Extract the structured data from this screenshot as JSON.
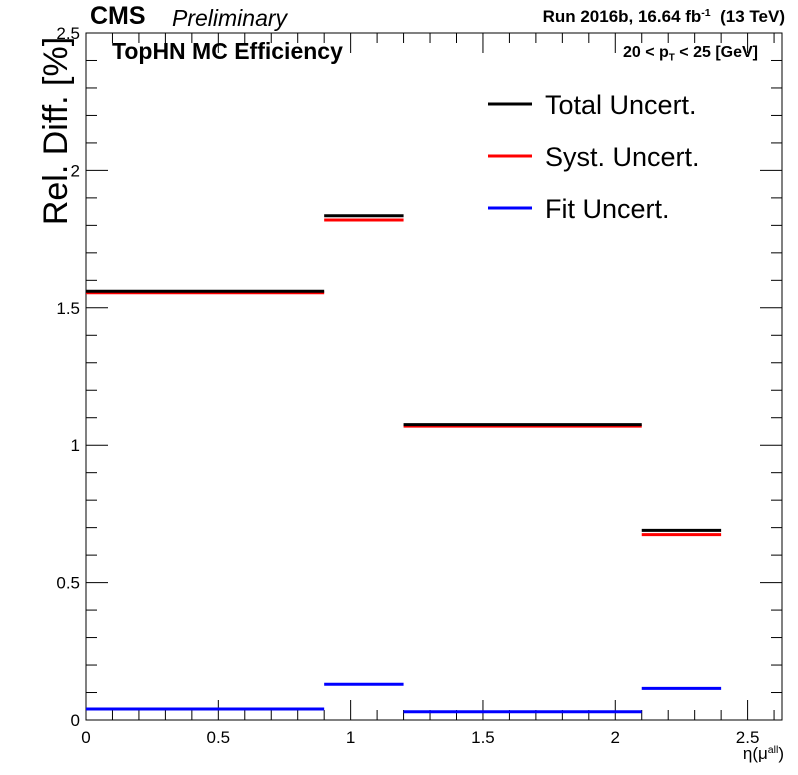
{
  "header": {
    "experiment": "CMS",
    "status": "Preliminary",
    "run_prefix": "Run 2016b,  16.64 fb",
    "run_exponent": "-1",
    "run_energy": "(13 TeV)"
  },
  "chart_data": {
    "type": "line",
    "title": "TopHN MC Efficiency",
    "pt_label": {
      "prefix": "20 < p",
      "sub": "T",
      "suffix": " < 25 [GeV]"
    },
    "ylabel": "Rel. Diff. [%]",
    "xlabel": {
      "prefix": "η(μ",
      "sup": "all",
      "suffix": ")"
    },
    "xlim": [
      0,
      2.63
    ],
    "ylim": [
      0,
      2.5
    ],
    "x_ticks": [
      0,
      0.5,
      1,
      1.5,
      2,
      2.5
    ],
    "x_tick_labels": [
      "0",
      "0.5",
      "1",
      "1.5",
      "2",
      "2.5"
    ],
    "y_ticks": [
      0,
      0.5,
      1,
      1.5,
      2,
      2.5
    ],
    "y_tick_labels": [
      "0",
      "0.5",
      "1",
      "1.5",
      "2",
      "2.5"
    ],
    "grid": false,
    "legend_position": "top-right",
    "bin_edges": [
      0,
      0.9,
      1.2,
      2.1,
      2.4
    ],
    "series": [
      {
        "name": "Total Uncert.",
        "color": "#000000",
        "values": [
          1.56,
          1.835,
          1.075,
          0.69
        ]
      },
      {
        "name": "Syst. Uncert.",
        "color": "#ff0000",
        "values": [
          1.56,
          1.825,
          1.075,
          0.68
        ]
      },
      {
        "name": "Fit Uncert.",
        "color": "#0000ff",
        "values": [
          0.04,
          0.13,
          0.03,
          0.115
        ]
      }
    ]
  }
}
